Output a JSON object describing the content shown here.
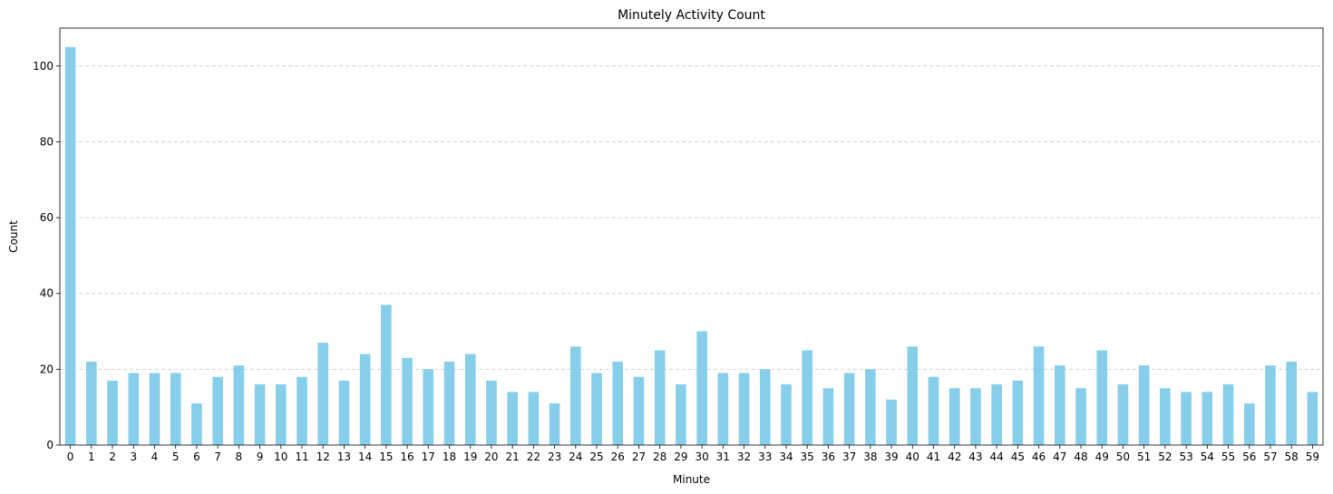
{
  "chart_data": {
    "type": "bar",
    "title": "Minutely Activity Count",
    "xlabel": "Minute",
    "ylabel": "Count",
    "categories": [
      "0",
      "1",
      "2",
      "3",
      "4",
      "5",
      "6",
      "7",
      "8",
      "9",
      "10",
      "11",
      "12",
      "13",
      "14",
      "15",
      "16",
      "17",
      "18",
      "19",
      "20",
      "21",
      "22",
      "23",
      "24",
      "25",
      "26",
      "27",
      "28",
      "29",
      "30",
      "31",
      "32",
      "33",
      "34",
      "35",
      "36",
      "37",
      "38",
      "39",
      "40",
      "41",
      "42",
      "43",
      "44",
      "45",
      "46",
      "47",
      "48",
      "49",
      "50",
      "51",
      "52",
      "53",
      "54",
      "55",
      "56",
      "57",
      "58",
      "59"
    ],
    "values": [
      105,
      22,
      17,
      19,
      19,
      19,
      11,
      18,
      21,
      16,
      16,
      18,
      27,
      17,
      24,
      37,
      23,
      20,
      22,
      24,
      17,
      14,
      14,
      11,
      26,
      19,
      22,
      18,
      25,
      16,
      30,
      19,
      19,
      20,
      16,
      25,
      15,
      19,
      20,
      12,
      26,
      18,
      15,
      15,
      16,
      17,
      26,
      21,
      15,
      25,
      16,
      21,
      15,
      14,
      14,
      16,
      11,
      21,
      22,
      14
    ],
    "ylim": [
      0,
      110
    ],
    "yticks": [
      0,
      20,
      40,
      60,
      80,
      100
    ],
    "grid": "y-dashed",
    "bar_color": "#87CEEB",
    "grid_color": "#c8c8c8",
    "axis_color": "#000000"
  }
}
